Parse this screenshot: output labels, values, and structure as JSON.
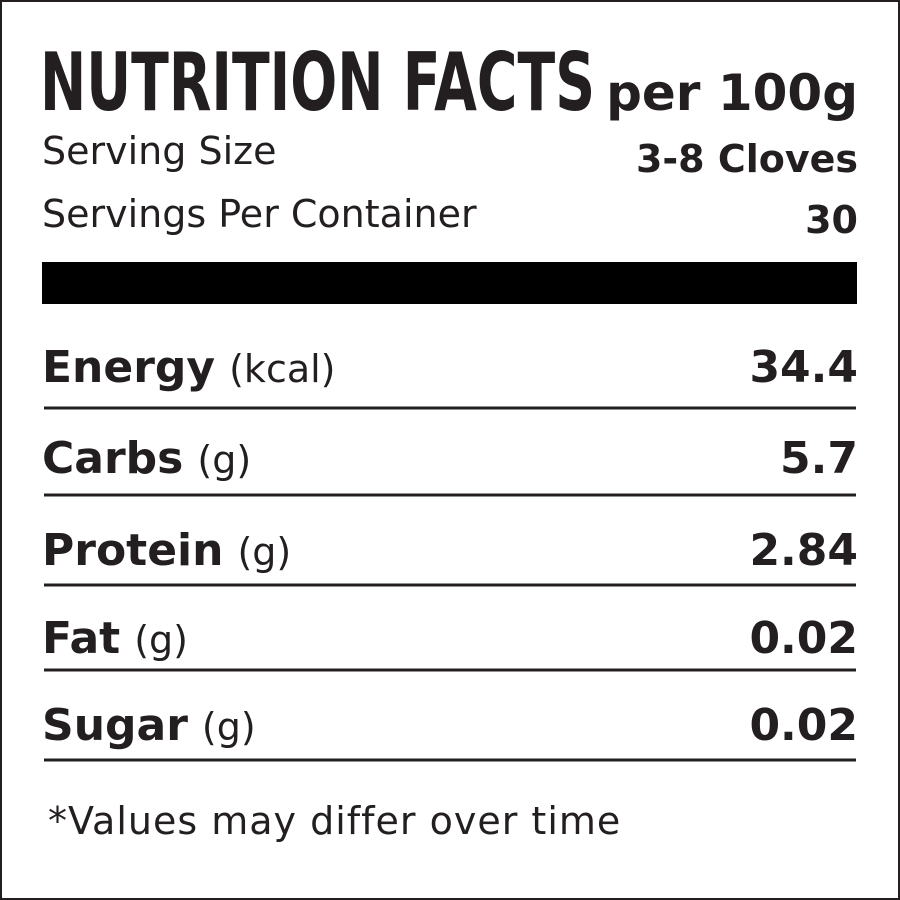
{
  "header": {
    "title": "NUTRITION FACTS",
    "basis": "per 100g"
  },
  "serving": [
    {
      "label": "Serving Size",
      "value": "3-8 Cloves"
    },
    {
      "label": "Servings Per Container",
      "value": "30"
    }
  ],
  "nutrients": [
    {
      "name": "Energy",
      "unit": "(kcal)",
      "value": "34.4"
    },
    {
      "name": "Carbs",
      "unit": "(g)",
      "value": "5.7"
    },
    {
      "name": "Protein",
      "unit": "(g)",
      "value": "2.84"
    },
    {
      "name": "Fat",
      "unit": "(g)",
      "value": "0.02"
    },
    {
      "name": "Sugar",
      "unit": "(g)",
      "value": "0.02"
    }
  ],
  "footnote": "*Values may differ over time"
}
